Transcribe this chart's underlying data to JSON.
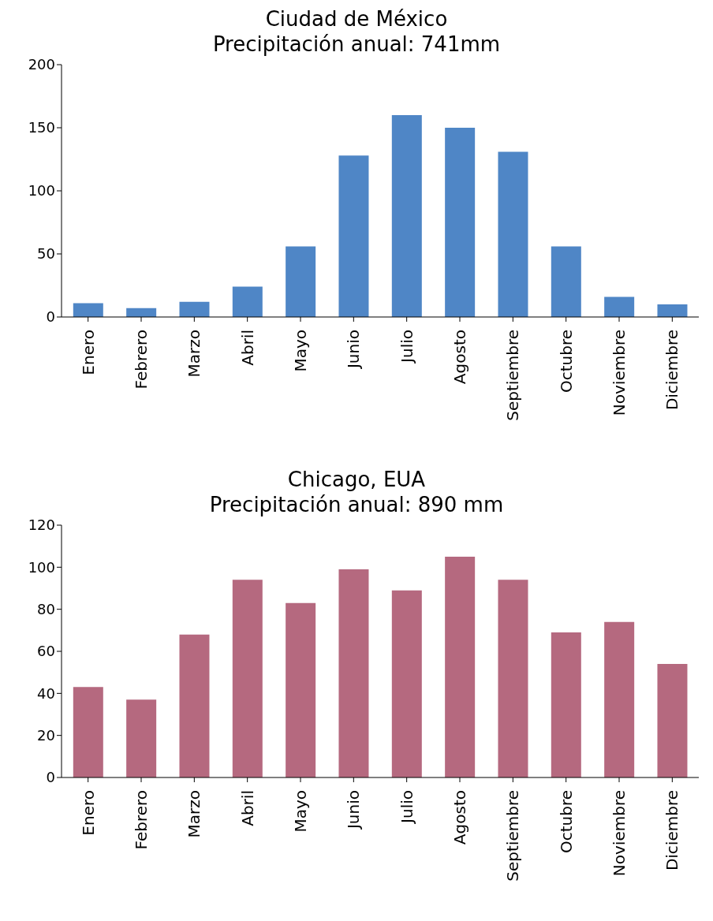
{
  "chart_data": [
    {
      "type": "bar",
      "title": "Ciudad de México",
      "subtitle": "Precipitación anual: 741mm",
      "categories": [
        "Enero",
        "Febrero",
        "Marzo",
        "Abril",
        "Mayo",
        "Junio",
        "Julio",
        "Agosto",
        "Septiembre",
        "Octubre",
        "Noviembre",
        "Diciembre"
      ],
      "values": [
        11,
        7,
        12,
        24,
        56,
        128,
        160,
        150,
        131,
        56,
        16,
        10
      ],
      "color": "#4f86c6",
      "ylim": [
        0,
        200
      ],
      "yticks": [
        0,
        50,
        100,
        150,
        200
      ],
      "grid": false,
      "legend": false
    },
    {
      "type": "bar",
      "title": "Chicago, EUA",
      "subtitle": "Precipitación anual: 890 mm",
      "categories": [
        "Enero",
        "Febrero",
        "Marzo",
        "Abril",
        "Mayo",
        "Junio",
        "Julio",
        "Agosto",
        "Septiembre",
        "Octubre",
        "Noviembre",
        "Diciembre"
      ],
      "values": [
        43,
        37,
        68,
        94,
        83,
        99,
        89,
        105,
        94,
        69,
        74,
        54
      ],
      "color": "#b5697f",
      "ylim": [
        0,
        120
      ],
      "yticks": [
        0,
        20,
        40,
        60,
        80,
        100,
        120
      ],
      "grid": false,
      "legend": false
    }
  ]
}
